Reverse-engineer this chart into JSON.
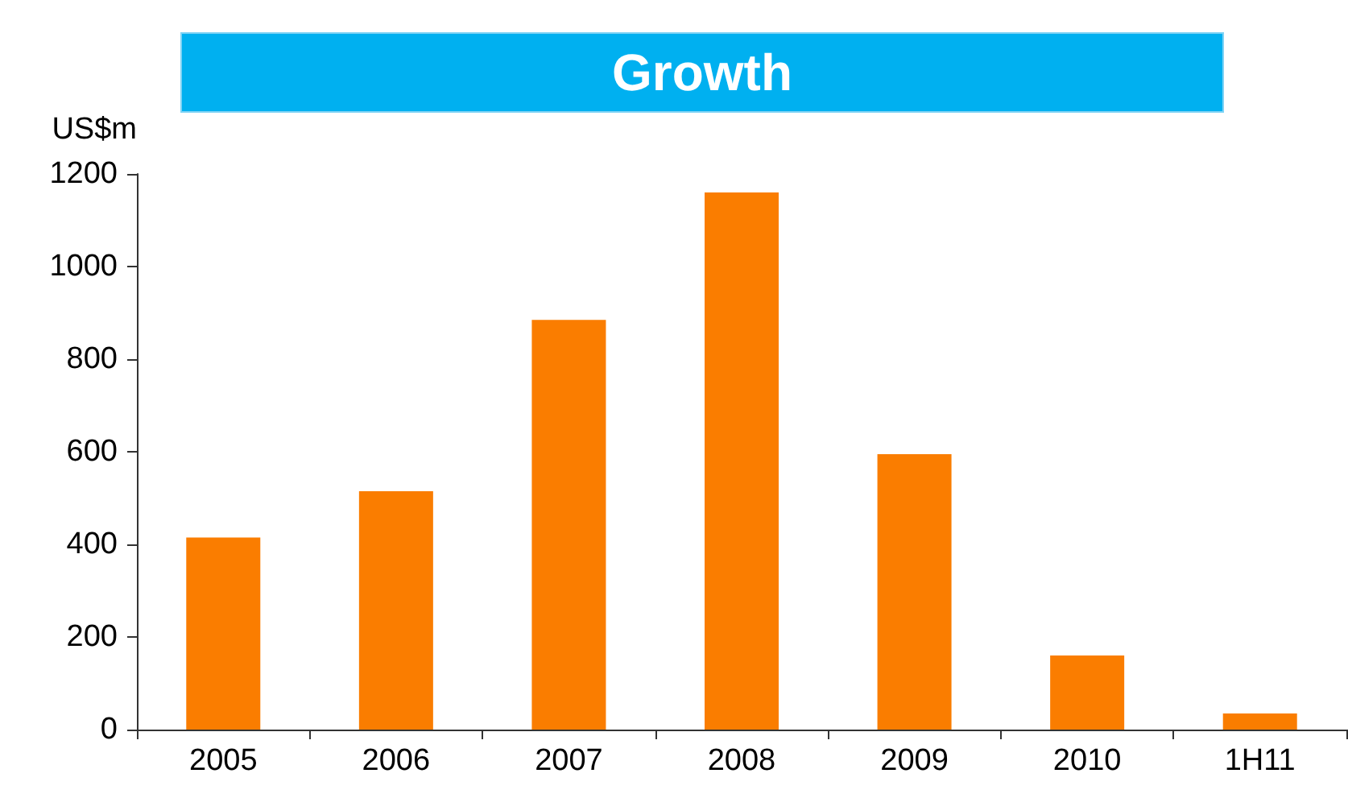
{
  "chart_data": {
    "type": "bar",
    "title": "Growth",
    "ylabel": "US$m",
    "categories": [
      "2005",
      "2006",
      "2007",
      "2008",
      "2009",
      "2010",
      "1H11"
    ],
    "values": [
      415,
      515,
      885,
      1160,
      595,
      160,
      35
    ],
    "color": "#fa7d00",
    "ylim": [
      0,
      1200
    ],
    "yticks": [
      0,
      200,
      400,
      600,
      800,
      1000,
      1200
    ],
    "grid": false
  }
}
